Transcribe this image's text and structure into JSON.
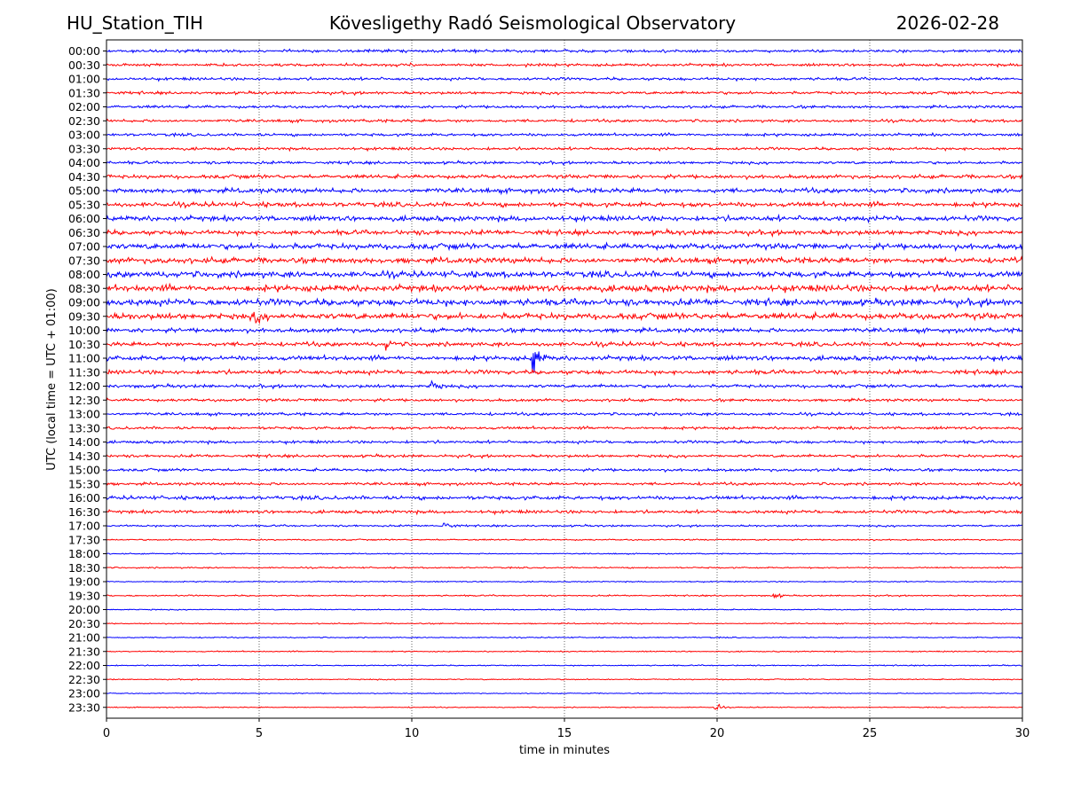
{
  "header": {
    "station": "HU_Station_TIH",
    "observatory": "Kövesligethy Radó Seismological Observatory",
    "date": "2026-02-28"
  },
  "chart_data": {
    "type": "line",
    "title": "Kövesligethy Radó Seismological Observatory",
    "xlabel": "time in minutes",
    "ylabel": "UTC (local time = UTC + 01:00)",
    "xlim": [
      0,
      30
    ],
    "xticks": [
      0,
      5,
      10,
      15,
      20,
      25,
      30
    ],
    "grid": "vertical dotted at 5, 10, 15, 20, 25",
    "row_labels": [
      "00:00",
      "00:30",
      "01:00",
      "01:30",
      "02:00",
      "02:30",
      "03:00",
      "03:30",
      "04:00",
      "04:30",
      "05:00",
      "05:30",
      "06:00",
      "06:30",
      "07:00",
      "07:30",
      "08:00",
      "08:30",
      "09:00",
      "09:30",
      "10:00",
      "10:30",
      "11:00",
      "11:30",
      "12:00",
      "12:30",
      "13:00",
      "13:30",
      "14:00",
      "14:30",
      "15:00",
      "15:30",
      "16:00",
      "16:30",
      "17:00",
      "17:30",
      "18:00",
      "18:30",
      "19:00",
      "19:30",
      "20:00",
      "20:30",
      "21:00",
      "21:30",
      "22:00",
      "22:30",
      "23:00",
      "23:30"
    ],
    "colors": {
      "even_rows": "#0000ff",
      "odd_rows": "#ff0000"
    },
    "noise_levels": [
      0.3,
      0.3,
      0.3,
      0.3,
      0.3,
      0.3,
      0.3,
      0.3,
      0.3,
      0.4,
      0.5,
      0.5,
      0.55,
      0.5,
      0.6,
      0.6,
      0.65,
      0.7,
      0.7,
      0.65,
      0.45,
      0.45,
      0.5,
      0.45,
      0.35,
      0.3,
      0.3,
      0.3,
      0.3,
      0.3,
      0.3,
      0.3,
      0.4,
      0.35,
      0.2,
      0.15,
      0.12,
      0.15,
      0.12,
      0.15,
      0.12,
      0.12,
      0.12,
      0.12,
      0.12,
      0.12,
      0.1,
      0.1
    ],
    "events": [
      {
        "row": "11:00",
        "minute": 14.0,
        "amplitude": 2.2,
        "note": "largest event, spans 10:30–11:30 traces"
      },
      {
        "row": "12:00",
        "minute": 10.7,
        "amplitude": 0.6
      },
      {
        "row": "17:00",
        "minute": 11.1,
        "amplitude": 0.6
      },
      {
        "row": "09:30",
        "minute": 4.9,
        "amplitude": 0.5
      },
      {
        "row": "10:30",
        "minute": 9.2,
        "amplitude": 0.4
      },
      {
        "row": "19:30",
        "minute": 21.9,
        "amplitude": 0.3
      },
      {
        "row": "23:30",
        "minute": 20.0,
        "amplitude": 0.3
      }
    ]
  }
}
